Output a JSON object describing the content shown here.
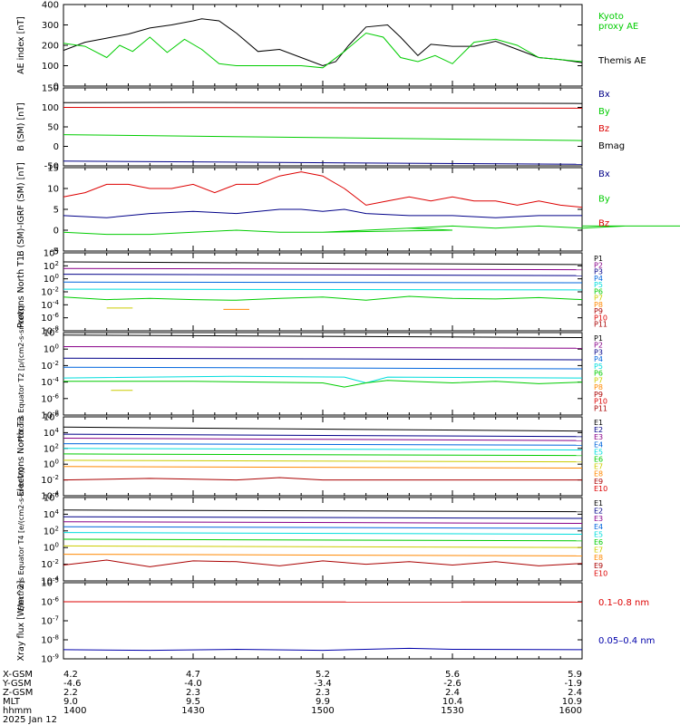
{
  "colors": {
    "black": "#000000",
    "red": "#dd0000",
    "green": "#00cc00",
    "blue": "#0000aa",
    "orange": "#ff8800",
    "yellow": "#cccc00",
    "cyan": "#00dddd",
    "purple": "#880088",
    "darkred": "#aa0000",
    "navy": "#000088",
    "mid": "#0066dd"
  },
  "chart_data": [
    {
      "type": "line",
      "name": "ae",
      "ylabel": "AE index [nT]",
      "ylim": [
        0,
        400
      ],
      "yticks": [
        "400",
        "300",
        "200",
        "100",
        "0"
      ],
      "series": [
        {
          "name": "Themis AE",
          "color": "black",
          "legend_lines": [
            "Themis AE"
          ],
          "x": [
            1400,
            1405,
            1410,
            1415,
            1420,
            1425,
            1430,
            1432,
            1436,
            1440,
            1445,
            1450,
            1455,
            1500,
            1503,
            1506,
            1510,
            1515,
            1518,
            1522,
            1525,
            1530,
            1535,
            1540,
            1545,
            1550,
            1555,
            1600
          ],
          "values": [
            175,
            215,
            235,
            255,
            285,
            300,
            320,
            330,
            320,
            260,
            170,
            180,
            140,
            100,
            120,
            200,
            290,
            300,
            240,
            150,
            205,
            195,
            195,
            220,
            180,
            140,
            130,
            115
          ]
        },
        {
          "name": "Kyoto proxy AE",
          "color": "green",
          "legend_lines": [
            "Kyoto",
            "proxy AE"
          ],
          "x": [
            1400,
            1405,
            1410,
            1413,
            1416,
            1420,
            1424,
            1428,
            1432,
            1436,
            1440,
            1445,
            1450,
            1455,
            1500,
            1505,
            1510,
            1514,
            1518,
            1522,
            1526,
            1530,
            1535,
            1540,
            1545,
            1550,
            1555,
            1600
          ],
          "values": [
            210,
            195,
            140,
            200,
            170,
            240,
            165,
            230,
            180,
            110,
            100,
            100,
            100,
            100,
            90,
            170,
            260,
            240,
            140,
            120,
            150,
            110,
            215,
            230,
            200,
            140,
            130,
            120
          ]
        }
      ]
    },
    {
      "type": "line",
      "name": "bsm",
      "ylabel": "B (SM) [nT]",
      "ylim": [
        -50,
        150
      ],
      "yticks": [
        "150",
        "100",
        "50",
        "0",
        "-50"
      ],
      "series": [
        {
          "name": "Bx",
          "color": "navy",
          "x": [
            1400,
            1600
          ],
          "values": [
            -38,
            -46
          ]
        },
        {
          "name": "By",
          "color": "green",
          "x": [
            1400,
            1600
          ],
          "values": [
            30,
            15
          ]
        },
        {
          "name": "Bz",
          "color": "red",
          "x": [
            1400,
            1600
          ],
          "values": [
            100,
            98
          ]
        },
        {
          "name": "Bmag",
          "color": "black",
          "x": [
            1400,
            1430,
            1600
          ],
          "values": [
            112,
            113,
            110
          ]
        }
      ]
    },
    {
      "type": "line",
      "name": "bigrf",
      "ylabel": "B (SM)-IGRF (SM) [nT]",
      "ylim": [
        -5,
        15
      ],
      "yticks": [
        "15",
        "10",
        "5",
        "0",
        "-5"
      ],
      "series": [
        {
          "name": "Bx",
          "color": "navy",
          "x": [
            1400,
            1410,
            1420,
            1430,
            1440,
            1450,
            1455,
            1500,
            1505,
            1510,
            1520,
            1530,
            1540,
            1550,
            1600
          ],
          "values": [
            3.5,
            3,
            4,
            4.5,
            4,
            5,
            5,
            4.5,
            5,
            4,
            3.5,
            3.5,
            3,
            3.5,
            3.5
          ]
        },
        {
          "name": "By",
          "color": "green",
          "x": [
            1400,
            1410,
            1420,
            1430,
            1440,
            1450,
            1460,
            1470,
            1480,
            1490,
            1500,
            1510,
            1520,
            1530,
            1540,
            1550,
            1560,
            1570,
            1580,
            1590,
            1600
          ],
          "values": [
            -0.5,
            -1,
            -1,
            -0.5,
            0,
            -0.5,
            -0.5,
            0,
            0.5,
            0,
            -0.5,
            0,
            0.5,
            1,
            0.5,
            1,
            0.5,
            1,
            1,
            1,
            1
          ]
        },
        {
          "name": "Bz",
          "color": "red",
          "x": [
            1400,
            1405,
            1410,
            1415,
            1420,
            1425,
            1430,
            1435,
            1440,
            1445,
            1450,
            1455,
            1500,
            1505,
            1510,
            1515,
            1520,
            1525,
            1530,
            1535,
            1540,
            1545,
            1550,
            1555,
            1600
          ],
          "values": [
            8,
            9,
            11,
            11,
            10,
            10,
            11,
            9,
            11,
            11,
            13,
            14,
            13,
            10,
            6,
            7,
            8,
            7,
            8,
            7,
            7,
            6,
            7,
            6,
            5.5
          ]
        }
      ]
    },
    {
      "type": "line",
      "name": "protons_north",
      "ylabel": "Protons North T1",
      "yscale": "log",
      "ylim": [
        -8,
        4
      ],
      "yticks": [
        "10^4",
        "10^2",
        "10^0",
        "10^-2",
        "10^-4",
        "10^-6",
        "10^-8"
      ],
      "channels": [
        "P1",
        "P2",
        "P3",
        "P4",
        "P5",
        "P6",
        "P7",
        "P8",
        "P9",
        "P10",
        "P11"
      ],
      "series": [
        {
          "name": "P1",
          "color": "black",
          "x": [
            1400,
            1600
          ],
          "values": [
            2.6,
            2.2
          ]
        },
        {
          "name": "P2",
          "color": "purple",
          "x": [
            1400,
            1600
          ],
          "values": [
            1.6,
            1.4
          ]
        },
        {
          "name": "P3",
          "color": "navy",
          "x": [
            1400,
            1600
          ],
          "values": [
            0.7,
            0.5
          ]
        },
        {
          "name": "P4",
          "color": "mid",
          "x": [
            1400,
            1600
          ],
          "values": [
            -0.5,
            -0.6
          ]
        },
        {
          "name": "P5",
          "color": "cyan",
          "x": [
            1400,
            1600
          ],
          "values": [
            -1.6,
            -1.7
          ]
        },
        {
          "name": "P6",
          "color": "green",
          "x": [
            1400,
            1410,
            1420,
            1430,
            1440,
            1450,
            1500,
            1510,
            1520,
            1530,
            1540,
            1550,
            1600
          ],
          "values": [
            -2.8,
            -3.2,
            -3,
            -3.2,
            -3.3,
            -3,
            -2.8,
            -3.3,
            -2.7,
            -3,
            -3.1,
            -2.9,
            -3.2
          ]
        },
        {
          "name": "P7",
          "color": "yellow",
          "x": [
            1410,
            1416
          ],
          "values": [
            -4.5,
            -4.5
          ]
        },
        {
          "name": "P8",
          "color": "orange",
          "x": [
            1437,
            1443
          ],
          "values": [
            -4.7,
            -4.7
          ]
        }
      ]
    },
    {
      "type": "line",
      "name": "protons_equator",
      "ylabel": "Protons Equator T2 [p/(cm2-s-sr-keV)]",
      "yscale": "log",
      "ylim": [
        -8,
        2
      ],
      "yticks": [
        "10^2",
        "10^0",
        "10^-2",
        "10^-4",
        "10^-6",
        "10^-8"
      ],
      "channels": [
        "P1",
        "P2",
        "P3",
        "P4",
        "P5",
        "P6",
        "P7",
        "P8",
        "P9",
        "P10",
        "P11"
      ],
      "series": [
        {
          "name": "P1",
          "color": "black",
          "x": [
            1400,
            1600
          ],
          "values": [
            1.7,
            1.4
          ]
        },
        {
          "name": "P2",
          "color": "purple",
          "x": [
            1400,
            1600
          ],
          "values": [
            0.3,
            0.1
          ]
        },
        {
          "name": "P3",
          "color": "navy",
          "x": [
            1400,
            1600
          ],
          "values": [
            -1.1,
            -1.3
          ]
        },
        {
          "name": "P4",
          "color": "mid",
          "x": [
            1400,
            1600
          ],
          "values": [
            -2.2,
            -2.4
          ]
        },
        {
          "name": "P5",
          "color": "cyan",
          "x": [
            1400,
            1440,
            1505,
            1510,
            1515,
            1600
          ],
          "values": [
            -3.5,
            -3.3,
            -3.4,
            -4.1,
            -3.4,
            -3.5
          ]
        },
        {
          "name": "P6",
          "color": "green",
          "x": [
            1400,
            1430,
            1500,
            1505,
            1510,
            1515,
            1520,
            1530,
            1540,
            1550,
            1600
          ],
          "values": [
            -3.9,
            -3.9,
            -4.1,
            -4.6,
            -4.1,
            -3.8,
            -3.9,
            -4.1,
            -3.9,
            -4.2,
            -4
          ]
        },
        {
          "name": "P7",
          "color": "yellow",
          "x": [
            1411,
            1416
          ],
          "values": [
            -5,
            -5
          ]
        }
      ]
    },
    {
      "type": "line",
      "name": "electrons_north",
      "ylabel": "Electrons North T3",
      "yscale": "log",
      "ylim": [
        -4,
        6
      ],
      "yticks": [
        "10^6",
        "10^4",
        "10^2",
        "10^0",
        "10^-2",
        "10^-4"
      ],
      "channels": [
        "E1",
        "E2",
        "E3",
        "E4",
        "E5",
        "E6",
        "E7",
        "E8",
        "E9",
        "E10"
      ],
      "series": [
        {
          "name": "E1",
          "color": "black",
          "x": [
            1400,
            1600
          ],
          "values": [
            4.7,
            4.2
          ]
        },
        {
          "name": "E2",
          "color": "navy",
          "x": [
            1400,
            1600
          ],
          "values": [
            3.8,
            3.5
          ]
        },
        {
          "name": "E3",
          "color": "purple",
          "x": [
            1400,
            1600
          ],
          "values": [
            3.3,
            3
          ]
        },
        {
          "name": "E4",
          "color": "mid",
          "x": [
            1400,
            1600
          ],
          "values": [
            2.6,
            2.4
          ]
        },
        {
          "name": "E5",
          "color": "cyan",
          "x": [
            1400,
            1600
          ],
          "values": [
            2,
            1.8
          ]
        },
        {
          "name": "E6",
          "color": "green",
          "x": [
            1400,
            1600
          ],
          "values": [
            1.3,
            1.1
          ]
        },
        {
          "name": "E7",
          "color": "yellow",
          "x": [
            1400,
            1600
          ],
          "values": [
            0.5,
            0.3
          ]
        },
        {
          "name": "E8",
          "color": "orange",
          "x": [
            1400,
            1600
          ],
          "values": [
            -0.3,
            -0.5
          ]
        },
        {
          "name": "E9",
          "color": "darkred",
          "x": [
            1400,
            1420,
            1440,
            1450,
            1500,
            1600
          ],
          "values": [
            -2,
            -1.8,
            -2,
            -1.7,
            -2,
            -2
          ]
        }
      ]
    },
    {
      "type": "line",
      "name": "electrons_equator",
      "ylabel": "Electrons Equator T4 [e/(cm2-s-sr-keV)]",
      "yscale": "log",
      "ylim": [
        -4,
        6
      ],
      "yticks": [
        "10^6",
        "10^4",
        "10^2",
        "10^0",
        "10^-2",
        "10^-4"
      ],
      "channels": [
        "E1",
        "E2",
        "E3",
        "E4",
        "E5",
        "E6",
        "E7",
        "E8",
        "E9",
        "E10"
      ],
      "series": [
        {
          "name": "E1",
          "color": "black",
          "x": [
            1400,
            1600
          ],
          "values": [
            4.5,
            4.3
          ]
        },
        {
          "name": "E2",
          "color": "navy",
          "x": [
            1400,
            1600
          ],
          "values": [
            3.7,
            3.5
          ]
        },
        {
          "name": "E3",
          "color": "purple",
          "x": [
            1400,
            1600
          ],
          "values": [
            3.1,
            2.9
          ]
        },
        {
          "name": "E4",
          "color": "mid",
          "x": [
            1400,
            1600
          ],
          "values": [
            2.5,
            2.3
          ]
        },
        {
          "name": "E5",
          "color": "cyan",
          "x": [
            1400,
            1600
          ],
          "values": [
            1.8,
            1.6
          ]
        },
        {
          "name": "E6",
          "color": "green",
          "x": [
            1400,
            1600
          ],
          "values": [
            1,
            0.8
          ]
        },
        {
          "name": "E7",
          "color": "yellow",
          "x": [
            1400,
            1600
          ],
          "values": [
            0.2,
            0
          ]
        },
        {
          "name": "E8",
          "color": "orange",
          "x": [
            1400,
            1600
          ],
          "values": [
            -0.8,
            -1
          ]
        },
        {
          "name": "E9",
          "color": "darkred",
          "x": [
            1400,
            1410,
            1420,
            1430,
            1440,
            1450,
            1500,
            1510,
            1520,
            1530,
            1540,
            1550,
            1600
          ],
          "values": [
            -2.1,
            -1.5,
            -2.3,
            -1.6,
            -1.7,
            -2.2,
            -1.6,
            -2,
            -1.7,
            -2.1,
            -1.7,
            -2.2,
            -1.9
          ]
        }
      ]
    },
    {
      "type": "line",
      "name": "xray",
      "ylabel": "Xray flux [W/m^2]",
      "yscale": "log",
      "ylim": [
        -9,
        -5
      ],
      "yticks": [
        "10^-5",
        "10^-6",
        "10^-7",
        "10^-8",
        "10^-9"
      ],
      "series": [
        {
          "name": "0.1-0.8 nm",
          "color": "red",
          "legend_lines": [
            "0.1–0.8 nm"
          ],
          "x": [
            1400,
            1600
          ],
          "values": [
            -6,
            -6.02
          ]
        },
        {
          "name": "0.05-0.4 nm",
          "color": "blue",
          "legend_lines": [
            "0.05–0.4 nm"
          ],
          "x": [
            1400,
            1420,
            1440,
            1500,
            1520,
            1530,
            1600
          ],
          "values": [
            -8.52,
            -8.55,
            -8.5,
            -8.55,
            -8.45,
            -8.5,
            -8.52
          ]
        }
      ]
    }
  ],
  "ephemeris": {
    "row_labels": [
      "X-GSM",
      "Y-GSM",
      "Z-GSM",
      "MLT",
      "hhmm"
    ],
    "columns": [
      [
        "4.2",
        "-4.6",
        "2.2",
        "9.0",
        "1400"
      ],
      [
        "4.7",
        "-4.0",
        "2.3",
        "9.5",
        "1430"
      ],
      [
        "5.2",
        "-3.4",
        "2.3",
        "9.9",
        "1500"
      ],
      [
        "5.6",
        "-2.6",
        "2.4",
        "10.4",
        "1530"
      ],
      [
        "5.9",
        "-1.9",
        "2.4",
        "10.9",
        "1600"
      ]
    ],
    "date": "2025 Jan 12"
  }
}
